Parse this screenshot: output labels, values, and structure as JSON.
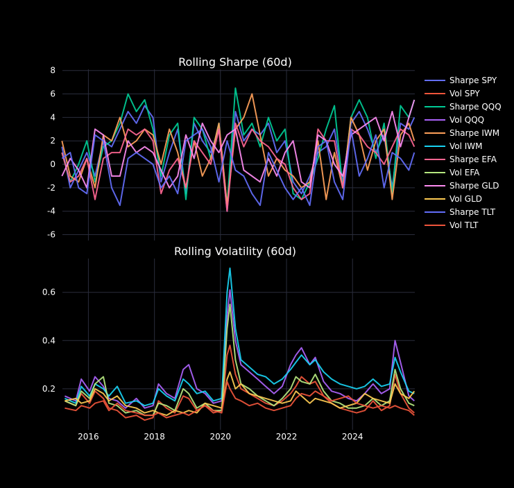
{
  "chart_data": [
    {
      "type": "line",
      "title": "Rolling Sharpe (60d)",
      "xlabel": "",
      "ylabel": "",
      "xlim": [
        "2015-03-20",
        "2025-11-20"
      ],
      "ylim": [
        -6.5,
        8.1
      ],
      "grid": true,
      "x_ticks": [
        "2016",
        "2018",
        "2020",
        "2022",
        "2024"
      ],
      "y_ticks": [
        -6,
        -4,
        -2,
        0,
        2,
        4,
        6,
        8
      ],
      "series_x": [
        "2015-03",
        "2015-06",
        "2015-09",
        "2015-12",
        "2016-03",
        "2016-06",
        "2016-09",
        "2016-12",
        "2017-03",
        "2017-06",
        "2017-09",
        "2017-12",
        "2018-03",
        "2018-06",
        "2018-09",
        "2018-12",
        "2019-03",
        "2019-06",
        "2019-09",
        "2019-12",
        "2020-03",
        "2020-06",
        "2020-09",
        "2020-12",
        "2021-03",
        "2021-06",
        "2021-09",
        "2021-12",
        "2022-03",
        "2022-06",
        "2022-09",
        "2022-12",
        "2023-03",
        "2023-06",
        "2023-09",
        "2023-12",
        "2024-03",
        "2024-06",
        "2024-09",
        "2024-12",
        "2025-03",
        "2025-06",
        "2025-09",
        "2025-11"
      ],
      "series": [
        {
          "name": "Sharpe SPY",
          "color": "#636efa",
          "values": [
            1.5,
            -2.0,
            -0.5,
            1.0,
            -1.0,
            2.0,
            1.5,
            3.0,
            4.5,
            3.5,
            5.0,
            4.0,
            -1.5,
            1.0,
            3.0,
            -2.5,
            3.5,
            2.0,
            1.0,
            3.0,
            -4.0,
            4.5,
            2.0,
            3.0,
            2.5,
            3.5,
            1.0,
            2.0,
            -1.5,
            -2.5,
            -1.0,
            1.0,
            1.5,
            3.0,
            -1.5,
            3.5,
            4.5,
            3.0,
            1.0,
            2.5,
            -2.0,
            3.5,
            3.0,
            4.0
          ]
        },
        {
          "name": "Sharpe QQQ",
          "color": "#00cc96",
          "values": [
            1.0,
            -1.5,
            0.0,
            2.0,
            -1.5,
            1.5,
            2.0,
            3.5,
            6.0,
            4.5,
            5.5,
            3.0,
            -1.0,
            2.5,
            3.5,
            -3.0,
            4.0,
            3.0,
            0.5,
            3.5,
            -3.5,
            6.5,
            2.5,
            3.5,
            1.5,
            4.0,
            2.0,
            3.0,
            -2.5,
            -3.0,
            -1.5,
            0.5,
            3.0,
            5.0,
            -2.0,
            4.0,
            5.5,
            4.0,
            0.5,
            3.5,
            -2.5,
            5.0,
            4.0,
            5.5
          ]
        },
        {
          "name": "Sharpe IWM",
          "color": "#ffa15a",
          "values": [
            2.0,
            -1.0,
            -1.5,
            0.5,
            -2.0,
            2.5,
            2.0,
            4.0,
            1.5,
            2.0,
            3.0,
            2.5,
            0.0,
            3.0,
            1.0,
            -2.0,
            2.0,
            -1.0,
            0.5,
            3.5,
            -3.5,
            3.0,
            4.0,
            6.0,
            2.5,
            -1.0,
            0.5,
            -0.5,
            -1.0,
            -2.0,
            -1.5,
            2.0,
            -3.0,
            1.0,
            -2.0,
            4.0,
            2.5,
            -0.5,
            2.0,
            3.0,
            -3.0,
            2.5,
            3.5,
            2.0
          ]
        },
        {
          "name": "Sharpe EFA",
          "color": "#ff6692",
          "values": [
            1.0,
            -1.5,
            -1.0,
            0.5,
            -3.0,
            0.5,
            1.0,
            1.0,
            3.0,
            2.5,
            3.0,
            2.0,
            -2.5,
            -0.5,
            0.5,
            -2.0,
            2.0,
            1.0,
            0.0,
            3.0,
            -4.0,
            3.5,
            1.5,
            3.0,
            2.0,
            1.5,
            0.5,
            0.0,
            -2.0,
            -3.0,
            -2.5,
            3.0,
            2.0,
            2.0,
            -2.0,
            3.0,
            2.5,
            1.5,
            1.0,
            0.0,
            1.5,
            3.0,
            2.5,
            1.5
          ]
        },
        {
          "name": "Sharpe GLD",
          "color": "#fe8cf2",
          "values": [
            -1.0,
            0.5,
            -0.5,
            -2.0,
            3.0,
            2.5,
            -1.0,
            -1.0,
            2.0,
            1.0,
            1.5,
            1.0,
            -0.5,
            -2.0,
            -1.0,
            2.5,
            0.5,
            3.5,
            2.0,
            1.0,
            2.5,
            3.0,
            -0.5,
            -1.0,
            -1.5,
            0.5,
            -1.0,
            1.0,
            2.0,
            -1.5,
            -2.0,
            2.5,
            2.0,
            0.0,
            -1.0,
            2.5,
            3.0,
            3.5,
            4.0,
            2.0,
            4.5,
            1.5,
            4.0,
            5.5
          ]
        },
        {
          "name": "Sharpe TLT",
          "color": "#636efa",
          "values": [
            0.5,
            1.0,
            -2.0,
            -2.5,
            2.5,
            2.0,
            -2.0,
            -3.5,
            0.5,
            1.0,
            0.5,
            0.0,
            -2.0,
            -1.0,
            -2.5,
            2.0,
            2.5,
            3.0,
            1.5,
            -1.5,
            2.0,
            -0.5,
            -1.0,
            -2.5,
            -3.5,
            1.0,
            -0.5,
            -2.0,
            -3.0,
            -2.0,
            -3.5,
            1.5,
            2.0,
            -1.5,
            -3.0,
            3.0,
            -1.0,
            0.5,
            2.5,
            -2.0,
            1.0,
            0.5,
            -0.5,
            1.0
          ]
        }
      ]
    },
    {
      "type": "line",
      "title": "Rolling Volatility (60d)",
      "xlabel": "",
      "ylabel": "",
      "xlim": [
        "2015-03-20",
        "2025-11-20"
      ],
      "ylim": [
        0.03,
        0.74
      ],
      "grid": true,
      "x_ticks": [
        "2016",
        "2018",
        "2020",
        "2022",
        "2024"
      ],
      "y_ticks": [
        0.2,
        0.4,
        0.6
      ],
      "series_x": [
        "2015-04",
        "2015-08",
        "2015-10",
        "2016-01",
        "2016-03",
        "2016-06",
        "2016-08",
        "2016-11",
        "2017-02",
        "2017-06",
        "2017-09",
        "2017-12",
        "2018-02",
        "2018-05",
        "2018-08",
        "2018-11",
        "2019-01",
        "2019-04",
        "2019-07",
        "2019-10",
        "2020-01",
        "2020-03",
        "2020-04",
        "2020-06",
        "2020-08",
        "2020-11",
        "2021-02",
        "2021-05",
        "2021-08",
        "2021-11",
        "2022-02",
        "2022-04",
        "2022-06",
        "2022-09",
        "2022-11",
        "2023-02",
        "2023-05",
        "2023-08",
        "2023-11",
        "2024-02",
        "2024-05",
        "2024-08",
        "2024-11",
        "2025-02",
        "2025-04",
        "2025-06",
        "2025-09",
        "2025-11"
      ],
      "series": [
        {
          "name": "Vol SPY",
          "color": "#ef553b",
          "values": [
            0.15,
            0.13,
            0.18,
            0.14,
            0.19,
            0.16,
            0.12,
            0.11,
            0.08,
            0.09,
            0.07,
            0.08,
            0.15,
            0.12,
            0.1,
            0.17,
            0.16,
            0.11,
            0.13,
            0.1,
            0.11,
            0.34,
            0.38,
            0.26,
            0.2,
            0.18,
            0.16,
            0.14,
            0.13,
            0.15,
            0.18,
            0.21,
            0.25,
            0.22,
            0.23,
            0.17,
            0.14,
            0.12,
            0.11,
            0.1,
            0.11,
            0.15,
            0.11,
            0.13,
            0.26,
            0.18,
            0.12,
            0.1
          ]
        },
        {
          "name": "Vol QQQ",
          "color": "#ab63fa",
          "values": [
            0.17,
            0.15,
            0.24,
            0.19,
            0.25,
            0.21,
            0.16,
            0.15,
            0.12,
            0.16,
            0.12,
            0.13,
            0.22,
            0.18,
            0.16,
            0.28,
            0.3,
            0.2,
            0.18,
            0.14,
            0.15,
            0.5,
            0.61,
            0.4,
            0.3,
            0.27,
            0.24,
            0.21,
            0.18,
            0.21,
            0.3,
            0.34,
            0.37,
            0.3,
            0.33,
            0.23,
            0.19,
            0.18,
            0.16,
            0.15,
            0.18,
            0.22,
            0.18,
            0.2,
            0.4,
            0.31,
            0.17,
            0.15
          ]
        },
        {
          "name": "Vol IWM",
          "color": "#19d3f3",
          "values": [
            0.16,
            0.14,
            0.21,
            0.17,
            0.22,
            0.2,
            0.17,
            0.21,
            0.14,
            0.15,
            0.13,
            0.14,
            0.2,
            0.17,
            0.15,
            0.24,
            0.22,
            0.18,
            0.19,
            0.15,
            0.16,
            0.6,
            0.7,
            0.45,
            0.32,
            0.29,
            0.26,
            0.25,
            0.22,
            0.24,
            0.28,
            0.31,
            0.34,
            0.3,
            0.32,
            0.27,
            0.24,
            0.22,
            0.21,
            0.2,
            0.21,
            0.24,
            0.21,
            0.22,
            0.33,
            0.27,
            0.19,
            0.18
          ]
        },
        {
          "name": "Vol EFA",
          "color": "#b6e880",
          "values": [
            0.15,
            0.13,
            0.19,
            0.16,
            0.22,
            0.25,
            0.14,
            0.13,
            0.1,
            0.11,
            0.09,
            0.09,
            0.14,
            0.13,
            0.11,
            0.2,
            0.18,
            0.12,
            0.14,
            0.11,
            0.11,
            0.45,
            0.55,
            0.32,
            0.22,
            0.2,
            0.17,
            0.15,
            0.13,
            0.16,
            0.2,
            0.25,
            0.23,
            0.22,
            0.26,
            0.19,
            0.15,
            0.14,
            0.12,
            0.12,
            0.13,
            0.16,
            0.13,
            0.15,
            0.28,
            0.2,
            0.14,
            0.13
          ]
        },
        {
          "name": "Vol GLD",
          "color": "#fecb52",
          "values": [
            0.15,
            0.16,
            0.14,
            0.15,
            0.2,
            0.18,
            0.15,
            0.17,
            0.13,
            0.12,
            0.1,
            0.11,
            0.1,
            0.09,
            0.11,
            0.1,
            0.11,
            0.1,
            0.14,
            0.13,
            0.12,
            0.24,
            0.27,
            0.2,
            0.22,
            0.18,
            0.17,
            0.16,
            0.15,
            0.14,
            0.15,
            0.19,
            0.17,
            0.14,
            0.16,
            0.15,
            0.14,
            0.12,
            0.13,
            0.14,
            0.18,
            0.16,
            0.15,
            0.14,
            0.22,
            0.18,
            0.16,
            0.19
          ]
        },
        {
          "name": "Vol TLT",
          "color": "#ef553b",
          "values": [
            0.12,
            0.11,
            0.13,
            0.12,
            0.14,
            0.15,
            0.11,
            0.14,
            0.11,
            0.1,
            0.09,
            0.09,
            0.1,
            0.08,
            0.09,
            0.1,
            0.09,
            0.11,
            0.13,
            0.11,
            0.1,
            0.23,
            0.2,
            0.16,
            0.15,
            0.13,
            0.14,
            0.12,
            0.11,
            0.12,
            0.13,
            0.16,
            0.18,
            0.17,
            0.19,
            0.17,
            0.15,
            0.16,
            0.17,
            0.14,
            0.13,
            0.12,
            0.13,
            0.12,
            0.13,
            0.12,
            0.11,
            0.09
          ]
        }
      ]
    }
  ],
  "legend": {
    "placement": "right",
    "items": [
      {
        "label": "Sharpe SPY",
        "color": "#636efa"
      },
      {
        "label": "Vol SPY",
        "color": "#ef553b"
      },
      {
        "label": "Sharpe QQQ",
        "color": "#00cc96"
      },
      {
        "label": "Vol QQQ",
        "color": "#ab63fa"
      },
      {
        "label": "Sharpe IWM",
        "color": "#ffa15a"
      },
      {
        "label": "Vol IWM",
        "color": "#19d3f3"
      },
      {
        "label": "Sharpe EFA",
        "color": "#ff6692"
      },
      {
        "label": "Vol EFA",
        "color": "#b6e880"
      },
      {
        "label": "Sharpe GLD",
        "color": "#fe8cf2"
      },
      {
        "label": "Vol GLD",
        "color": "#fecb52"
      },
      {
        "label": "Sharpe TLT",
        "color": "#636efa"
      },
      {
        "label": "Vol TLT",
        "color": "#ef553b"
      }
    ]
  },
  "theme": {
    "background": "#000000",
    "grid": "#2a2d3c",
    "text": "#ffffff"
  }
}
